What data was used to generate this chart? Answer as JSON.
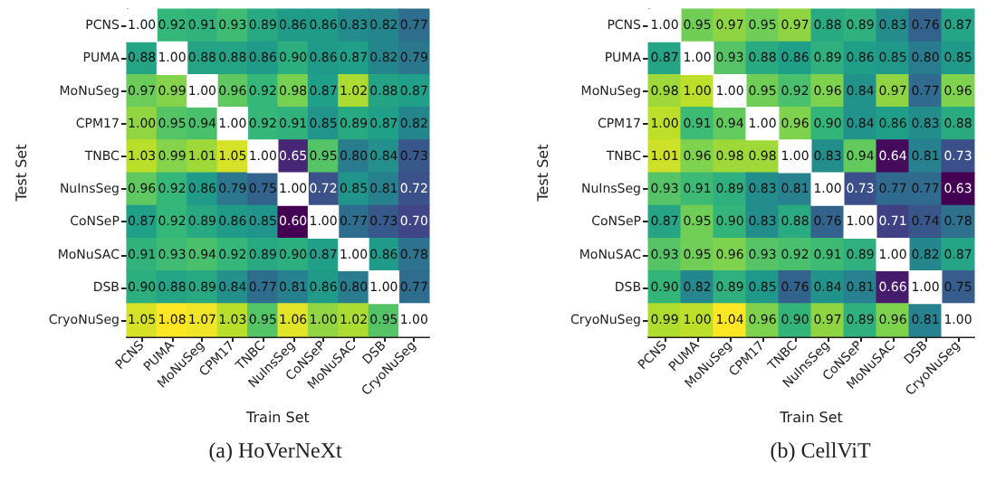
{
  "chart_data": [
    {
      "type": "heatmap",
      "title": "(a) HoVerNeXt",
      "xlabel": "Train Set",
      "ylabel": "Test Set",
      "categories": [
        "PCNS",
        "PUMA",
        "MoNuSeg",
        "CPM17",
        "TNBC",
        "NuInsSeg",
        "CoNSeP",
        "MoNuSAC",
        "DSB",
        "CryoNuSeg"
      ],
      "y_categories": [
        "PCNS",
        "PUMA",
        "MoNuSeg",
        "CPM17",
        "TNBC",
        "NuInsSeg",
        "CoNSeP",
        "MoNuSAC",
        "DSB",
        "CryoNuSeg"
      ],
      "cells": [
        [
          1.0,
          0.92,
          0.91,
          0.93,
          0.89,
          0.86,
          0.86,
          0.83,
          0.82,
          0.77
        ],
        [
          0.88,
          1.0,
          0.88,
          0.88,
          0.86,
          0.9,
          0.86,
          0.87,
          0.82,
          0.79
        ],
        [
          0.97,
          0.99,
          1.0,
          0.96,
          0.92,
          0.98,
          0.87,
          1.02,
          0.88,
          0.87
        ],
        [
          1.0,
          0.95,
          0.94,
          1.0,
          0.92,
          0.91,
          0.85,
          0.89,
          0.87,
          0.82
        ],
        [
          1.03,
          0.99,
          1.01,
          1.05,
          1.0,
          0.65,
          0.95,
          0.8,
          0.84,
          0.73
        ],
        [
          0.96,
          0.92,
          0.86,
          0.79,
          0.75,
          1.0,
          0.72,
          0.85,
          0.81,
          0.72
        ],
        [
          0.87,
          0.92,
          0.89,
          0.86,
          0.85,
          0.6,
          1.0,
          0.77,
          0.73,
          0.7
        ],
        [
          0.91,
          0.93,
          0.94,
          0.92,
          0.89,
          0.9,
          0.87,
          1.0,
          0.86,
          0.78
        ],
        [
          0.9,
          0.88,
          0.89,
          0.84,
          0.77,
          0.81,
          0.86,
          0.8,
          1.0,
          0.77
        ],
        [
          1.05,
          1.08,
          1.07,
          1.03,
          0.95,
          1.06,
          1.0,
          1.02,
          0.95,
          1.0
        ]
      ],
      "cell_labels": [
        [
          "1.00",
          "0.92",
          "0.91",
          "0.93",
          "0.89",
          "0.86",
          "0.86",
          "0.83",
          "0.82",
          "0.77"
        ],
        [
          "0.88",
          "1.00",
          "0.88",
          "0.88",
          "0.86",
          "0.90",
          "0.86",
          "0.87",
          "0.82",
          "0.79"
        ],
        [
          "0.97",
          "0.99",
          "1.00",
          "0.96",
          "0.92",
          "0.98",
          "0.87",
          "1.02",
          "0.88",
          "0.87"
        ],
        [
          "1.00",
          "0.95",
          "0.94",
          "1.00",
          "0.92",
          "0.91",
          "0.85",
          "0.89",
          "0.87",
          "0.82"
        ],
        [
          "1.03",
          "0.99",
          "1.01",
          "1.05",
          "1.00",
          "0.65",
          "0.95",
          "0.80",
          "0.84",
          "0.73"
        ],
        [
          "0.96",
          "0.92",
          "0.86",
          "0.79",
          "0.75",
          "1.00",
          "0.72",
          "0.85",
          "0.81",
          "0.72"
        ],
        [
          "0.87",
          "0.92",
          "0.89",
          "0.86",
          "0.85",
          "0.60",
          "1.00",
          "0.77",
          "0.73",
          "0.70"
        ],
        [
          "0.91",
          "0.93",
          "0.94",
          "0.92",
          "0.89",
          "0.90",
          "0.87",
          "1.00",
          "0.86",
          "0.78"
        ],
        [
          "0.90",
          "0.88",
          "0.89",
          "0.84",
          "0.77",
          "0.81",
          "0.86",
          "0.80",
          "1.00",
          "0.77"
        ],
        [
          "1.05",
          "1.08",
          "1.07",
          "1.03",
          "0.95",
          "1.06",
          "1.00",
          "1.02",
          "0.95",
          "1.00"
        ]
      ]
    },
    {
      "type": "heatmap",
      "title": "(b) CellViT",
      "xlabel": "Train Set",
      "ylabel": "Test Set",
      "categories": [
        "PCNS",
        "PUMA",
        "MoNuSeg",
        "CPM17",
        "TNBC",
        "NuInsSeg",
        "CoNSeP",
        "MoNuSAC",
        "DSB",
        "CryoNuSeg"
      ],
      "y_categories": [
        "PCNS",
        "PUMA",
        "MoNuSeg",
        "CPM17",
        "TNBC",
        "NuInsSeg",
        "CoNSeP",
        "MoNuSAC",
        "DSB",
        "CryoNuSeg"
      ],
      "cells": [
        [
          1.0,
          0.95,
          0.97,
          0.95,
          0.97,
          0.88,
          0.89,
          0.83,
          0.76,
          0.87
        ],
        [
          0.87,
          1.0,
          0.93,
          0.88,
          0.86,
          0.89,
          0.86,
          0.85,
          0.8,
          0.85
        ],
        [
          0.98,
          1.0,
          1.0,
          0.95,
          0.92,
          0.96,
          0.84,
          0.97,
          0.77,
          0.96
        ],
        [
          1.0,
          0.91,
          0.94,
          1.0,
          0.96,
          0.9,
          0.84,
          0.86,
          0.83,
          0.88
        ],
        [
          1.01,
          0.96,
          0.98,
          0.98,
          1.0,
          0.83,
          0.94,
          0.64,
          0.81,
          0.73
        ],
        [
          0.93,
          0.91,
          0.89,
          0.83,
          0.81,
          1.0,
          0.73,
          0.77,
          0.77,
          0.63
        ],
        [
          0.87,
          0.95,
          0.9,
          0.83,
          0.88,
          0.76,
          1.0,
          0.71,
          0.74,
          0.78
        ],
        [
          0.93,
          0.95,
          0.96,
          0.93,
          0.92,
          0.91,
          0.89,
          1.0,
          0.82,
          0.87
        ],
        [
          0.9,
          0.82,
          0.89,
          0.85,
          0.76,
          0.84,
          0.81,
          0.66,
          1.0,
          0.75
        ],
        [
          0.99,
          1.0,
          1.04,
          0.96,
          0.9,
          0.97,
          0.89,
          0.96,
          0.81,
          1.0
        ]
      ],
      "cell_labels": [
        [
          "1.00",
          "0.95",
          "0.97",
          "0.95",
          "0.97",
          "0.88",
          "0.89",
          "0.83",
          "0.76",
          "0.87"
        ],
        [
          "0.87",
          "1.00",
          "0.93",
          "0.88",
          "0.86",
          "0.89",
          "0.86",
          "0.85",
          "0.80",
          "0.85"
        ],
        [
          "0.98",
          "1.00",
          "1.00",
          "0.95",
          "0.92",
          "0.96",
          "0.84",
          "0.97",
          "0.77",
          "0.96"
        ],
        [
          "1.00",
          "0.91",
          "0.94",
          "1.00",
          "0.96",
          "0.90",
          "0.84",
          "0.86",
          "0.83",
          "0.88"
        ],
        [
          "1.01",
          "0.96",
          "0.98",
          "0.98",
          "1.00",
          "0.83",
          "0.94",
          "0.64",
          "0.81",
          "0.73"
        ],
        [
          "0.93",
          "0.91",
          "0.89",
          "0.83",
          "0.81",
          "1.00",
          "0.73",
          "0.77",
          "0.77",
          "0.63"
        ],
        [
          "0.87",
          "0.95",
          "0.90",
          "0.83",
          "0.88",
          "0.76",
          "1.00",
          "0.71",
          "0.74",
          "0.78"
        ],
        [
          "0.93",
          "0.95",
          "0.96",
          "0.93",
          "0.92",
          "0.91",
          "0.89",
          "1.00",
          "0.82",
          "0.87"
        ],
        [
          "0.90",
          "0.82",
          "0.89",
          "0.85",
          "0.76",
          "0.84",
          "0.81",
          "0.66",
          "1.00",
          "0.75"
        ],
        [
          "0.99",
          "1.00",
          "1.04",
          "0.96",
          "0.90",
          "0.97",
          "0.89",
          "0.96",
          "0.81",
          "1.00"
        ]
      ]
    }
  ]
}
